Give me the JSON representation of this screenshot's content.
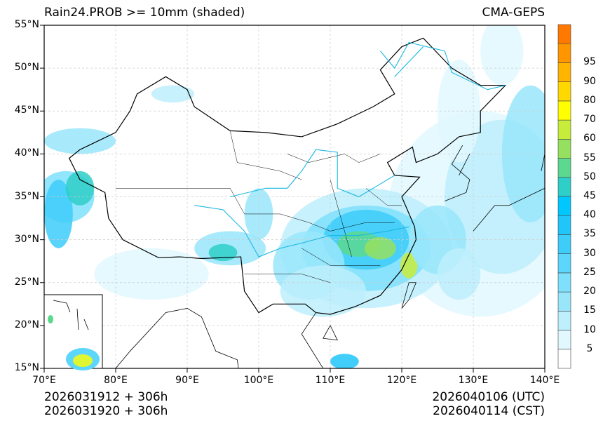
{
  "title_left": "Rain24.PROB >= 10mm (shaded)",
  "title_right": "CMA-GEPS",
  "lat_labels": [
    "55°N",
    "50°N",
    "45°N",
    "40°N",
    "35°N",
    "30°N",
    "25°N",
    "20°N",
    "15°N"
  ],
  "lon_labels": [
    "70°E",
    "80°E",
    "90°E",
    "100°E",
    "110°E",
    "120°E",
    "130°E",
    "140°E"
  ],
  "colorbar": {
    "labels": [
      "5",
      "10",
      "15",
      "20",
      "25",
      "30",
      "35",
      "40",
      "45",
      "50",
      "55",
      "60",
      "70",
      "80",
      "90",
      "95"
    ],
    "colors": [
      "#ffffff",
      "#e0f8fe",
      "#bdeffc",
      "#99e6fb",
      "#7ee0fb",
      "#5cd6fa",
      "#3dcdf9",
      "#20c6f9",
      "#00c8ff",
      "#2ecfc8",
      "#5cd88f",
      "#96e05f",
      "#c8ec3a",
      "#ffff00",
      "#ffd800",
      "#ffb400",
      "#ff9600",
      "#ff7800"
    ]
  },
  "footer": {
    "init_utc": "2026031912 + 306h",
    "init_cst": "2026031920 + 306h",
    "valid_utc": "2026040106 (UTC)",
    "valid_cst": "2026040114 (CST)"
  }
}
